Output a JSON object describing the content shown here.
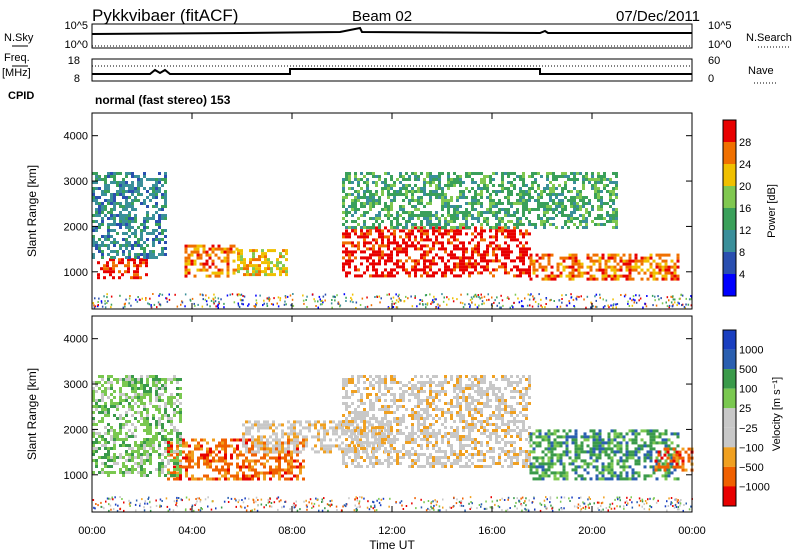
{
  "header": {
    "station": "Pykkvibaer (fitACF)",
    "beam": "Beam 02",
    "date": "07/Dec/2011"
  },
  "top_panels": {
    "nsky_label": "N.Sky",
    "nsky_ticks": [
      "10^5",
      "10^0"
    ],
    "nsearch_label": "N.Search",
    "nsearch_ticks": [
      "10^5",
      "10^0"
    ],
    "freq_label_1": "Freq.",
    "freq_label_2": "[MHz]",
    "freq_ticks": [
      "18",
      "8"
    ],
    "nave_label": "Nave",
    "nave_ticks": [
      "60",
      "0"
    ],
    "cpid_label": "CPID",
    "cpid_value": "normal (fast stereo) 153"
  },
  "chart_data": [
    {
      "type": "heatmap",
      "name": "power",
      "ylabel": "Slant Range [km]",
      "ylim": [
        180,
        4500
      ],
      "yticks": [
        "1000",
        "2000",
        "3000",
        "4000"
      ],
      "xlim": [
        0,
        24
      ],
      "colorbar_label": "Power [dB]",
      "colorbar_ticks": [
        "28",
        "24",
        "20",
        "16",
        "12",
        "8",
        "4"
      ],
      "colorbar_colors": [
        "#0000ff",
        "#2a4fb0",
        "#3a8f9a",
        "#3aa05a",
        "#80c850",
        "#f0c000",
        "#f07000",
        "#e80000"
      ],
      "regions": [
        {
          "t0": 0.2,
          "t1": 2.2,
          "r0": 850,
          "r1": 1300,
          "level": 7
        },
        {
          "t0": 3.7,
          "t1": 5.8,
          "r0": 900,
          "r1": 1600,
          "level": 6
        },
        {
          "t0": 5.8,
          "t1": 7.8,
          "r0": 950,
          "r1": 1500,
          "level": 5
        },
        {
          "t0": 10.0,
          "t1": 17.5,
          "r0": 900,
          "r1": 2000,
          "level": 7
        },
        {
          "t0": 17.5,
          "t1": 23.5,
          "r0": 850,
          "r1": 1400,
          "level": 6
        },
        {
          "t0": 0.0,
          "t1": 3.0,
          "r0": 1300,
          "r1": 3200,
          "level": 2
        },
        {
          "t0": 10.0,
          "t1": 21.0,
          "r0": 2000,
          "r1": 3200,
          "level": 3
        }
      ]
    },
    {
      "type": "heatmap",
      "name": "velocity",
      "ylabel": "Slant Range [km]",
      "ylim": [
        180,
        4500
      ],
      "yticks": [
        "1000",
        "2000",
        "3000",
        "4000"
      ],
      "xlim": [
        0,
        24
      ],
      "xlabel": "Time UT",
      "xticks": [
        "00:00",
        "04:00",
        "08:00",
        "12:00",
        "16:00",
        "20:00",
        "00:00"
      ],
      "colorbar_label": "Velocity [m s⁻¹]",
      "colorbar_ticks": [
        "1000",
        "500",
        "100",
        "25",
        "−25",
        "−100",
        "−500",
        "−1000"
      ],
      "colorbar_colors": [
        "#e80000",
        "#f06000",
        "#f0a020",
        "#c8c8c8",
        "#c8c8c8",
        "#7ac850",
        "#3a9a4a",
        "#2a5fb0",
        "#1a3fc0"
      ],
      "regions": [
        {
          "t0": 3.0,
          "t1": 8.5,
          "r0": 900,
          "r1": 1800,
          "level": 1
        },
        {
          "t0": 6.0,
          "t1": 12.0,
          "r0": 1500,
          "r1": 2200,
          "level": 3
        },
        {
          "t0": 10.0,
          "t1": 17.5,
          "r0": 1200,
          "r1": 3200,
          "level": 3
        },
        {
          "t0": 17.5,
          "t1": 23.5,
          "r0": 900,
          "r1": 2000,
          "level": 6
        },
        {
          "t0": 0.0,
          "t1": 3.5,
          "r0": 1000,
          "r1": 3200,
          "level": 5
        },
        {
          "t0": 22.5,
          "t1": 24.0,
          "r0": 1100,
          "r1": 1600,
          "level": 1
        }
      ]
    }
  ]
}
